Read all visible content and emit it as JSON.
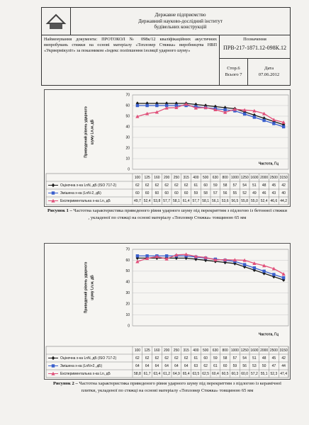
{
  "header": {
    "org": [
      "Державне підприємство",
      "Державний науково-дослідний інститут",
      "будівельних конструкцій"
    ],
    "document_name": "Найменування документа: ПРОТОКОЛ № 098к/12 кваліфікаційних акустичних випробувань стяжки на основі матеріалу «Тепловер Стяжка» виробництва НВП «Укрвермікуліт» за показником «індекс поліпшення ізоляції ударного шуму»",
    "designation_label": "Позначення",
    "designation": "ПРВ-217-1871.12-098К.12",
    "page": "Стор.6",
    "total": "Всього 7",
    "date_label": "Дата",
    "date": "07.06.2012"
  },
  "chart_data": [
    {
      "type": "line",
      "ylabel": [
        "Приведений рівень ударного",
        "шуму Ln,w, дБ"
      ],
      "xlabel": "Частота, Гц",
      "categories": [
        100,
        125,
        160,
        200,
        250,
        315,
        400,
        500,
        630,
        800,
        1000,
        1250,
        1600,
        2000,
        2500,
        3150
      ],
      "ylim": [
        0,
        70
      ],
      "yticks": [
        0,
        10,
        20,
        30,
        40,
        50,
        60,
        70
      ],
      "grid": true,
      "series": [
        {
          "name": "Оціночна х-ка LnN, дБ (ISO 717-2)",
          "color": "#1a1a1a",
          "marker": "diamond",
          "values": [
            62,
            62,
            62,
            62,
            62,
            62,
            61,
            60,
            59,
            58,
            57,
            54,
            51,
            48,
            45,
            42
          ]
        },
        {
          "name": "Змішена х-ка (LnN-2, дБ)",
          "color": "#3a5fcd",
          "marker": "square",
          "values": [
            60,
            60,
            60,
            60,
            60,
            60,
            59,
            58,
            57,
            56,
            55,
            52,
            49,
            46,
            43,
            40
          ]
        },
        {
          "name": "Експериментальна х-ка Ln, дБ",
          "color": "#e0507a",
          "marker": "triangle",
          "values": [
            49.7,
            52.4,
            53.8,
            57.7,
            58.1,
            61.4,
            57.7,
            58.1,
            56.1,
            53.6,
            56.5,
            55.8,
            55.0,
            52.4,
            46.6,
            44.2
          ],
          "value_labels": [
            "49,7",
            "52,4",
            "53,8",
            "57,7",
            "58,1",
            "61,4",
            "57,7",
            "58,1",
            "56,1",
            "53,6",
            "56,5",
            "55,8",
            "55,0",
            "52,4",
            "46,6",
            "44,2"
          ]
        }
      ]
    },
    {
      "type": "line",
      "ylabel": [
        "Приведений рівень ударного",
        "шуму Ln,w, дБ"
      ],
      "xlabel": "Частота, Гц",
      "categories": [
        100,
        125,
        160,
        200,
        250,
        315,
        400,
        500,
        630,
        800,
        1000,
        1250,
        1600,
        2000,
        2500,
        3150
      ],
      "ylim": [
        0,
        70
      ],
      "yticks": [
        0,
        10,
        20,
        30,
        40,
        50,
        60,
        70
      ],
      "grid": true,
      "series": [
        {
          "name": "Оціночна х-ка LnN, дБ (ISO 717-2)",
          "color": "#1a1a1a",
          "marker": "diamond",
          "values": [
            62,
            62,
            62,
            62,
            62,
            62,
            61,
            60,
            59,
            58,
            57,
            54,
            51,
            48,
            45,
            42
          ]
        },
        {
          "name": "Змішена х-ка (LnN+2, дБ)",
          "color": "#3a5fcd",
          "marker": "square",
          "values": [
            64,
            64,
            64,
            64,
            64,
            64,
            63,
            62,
            61,
            60,
            59,
            56,
            53,
            50,
            47,
            44
          ]
        },
        {
          "name": "Експериментальна х-ка Ln, дБ",
          "color": "#e0507a",
          "marker": "triangle",
          "values": [
            58.8,
            61.7,
            63.4,
            61.2,
            64.9,
            65.4,
            63.5,
            62.5,
            60.4,
            60.5,
            60.3,
            60.0,
            57.2,
            55.1,
            52.3,
            47.4
          ],
          "value_labels": [
            "58,8",
            "61,7",
            "63,4",
            "61,2",
            "64,9",
            "65,4",
            "63,5",
            "62,5",
            "60,4",
            "60,5",
            "60,3",
            "60,0",
            "57,2",
            "55,1",
            "52,3",
            "47,4"
          ]
        }
      ]
    }
  ],
  "captions": [
    {
      "label": "Рисунок 1 –",
      "text": "Частотна характеристика приведеного рівня ударного шуму під перекриттям з підлогою із бетонної стяжки , укладеної по стяжці на основі матеріалу «Тепловер Стяжка» товщиною 65 мм"
    },
    {
      "label": "Рисунок 2 –",
      "text": "Частотна характеристика приведеного рівня ударного шуму під перекриттям з підлогою із керамічної плитки, укладеної по стяжці на основі матеріалу «Тепловер Стяжка» товщиною 65 мм"
    }
  ]
}
